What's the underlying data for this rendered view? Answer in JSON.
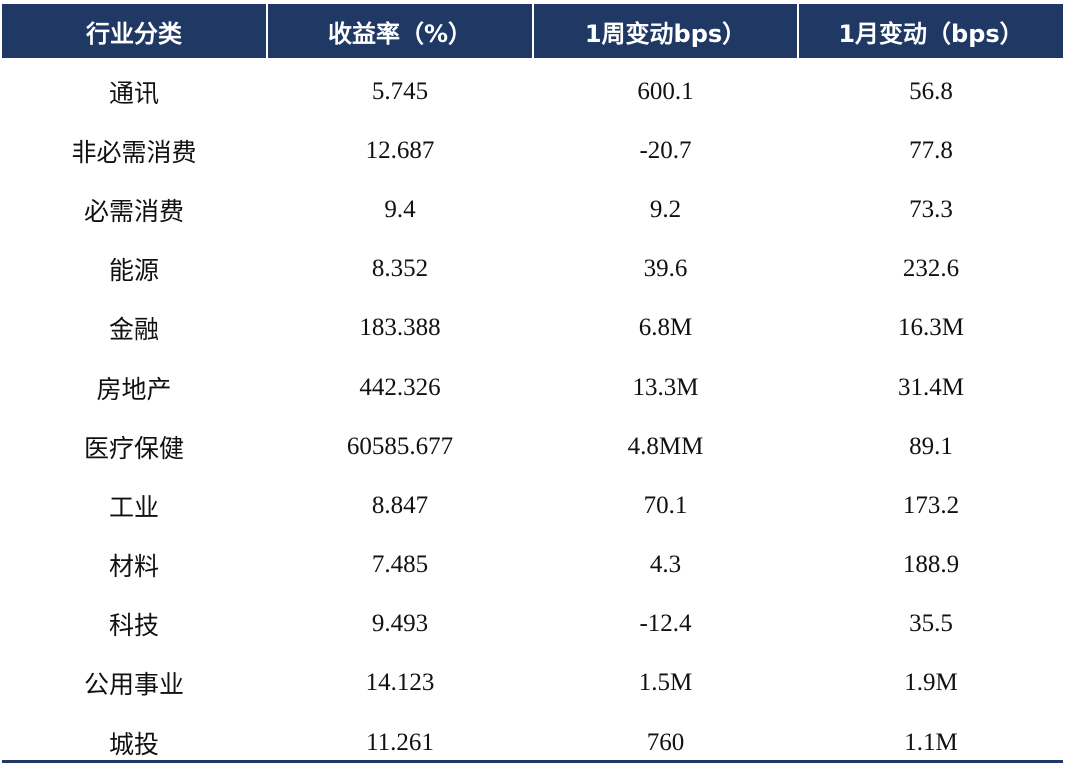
{
  "table": {
    "headers": [
      "行业分类",
      "收益率（%）",
      "1周变动bps）",
      "1月变动（bps）"
    ],
    "rows": [
      [
        "通讯",
        "5.745",
        "600.1",
        "56.8"
      ],
      [
        "非必需消费",
        "12.687",
        "-20.7",
        "77.8"
      ],
      [
        "必需消费",
        "9.4",
        "9.2",
        "73.3"
      ],
      [
        "能源",
        "8.352",
        "39.6",
        "232.6"
      ],
      [
        "金融",
        "183.388",
        "6.8M",
        "16.3M"
      ],
      [
        "房地产",
        "442.326",
        "13.3M",
        "31.4M"
      ],
      [
        "医疗保健",
        "60585.677",
        "4.8MM",
        "89.1"
      ],
      [
        "工业",
        "8.847",
        "70.1",
        "173.2"
      ],
      [
        "材料",
        "7.485",
        "4.3",
        "188.9"
      ],
      [
        "科技",
        "9.493",
        "-12.4",
        "35.5"
      ],
      [
        "公用事业",
        "14.123",
        "1.5M",
        "1.9M"
      ],
      [
        "城投",
        "11.261",
        "760",
        "1.1M"
      ]
    ]
  },
  "colors": {
    "header_bg": "#1f3864",
    "header_text": "#ffffff",
    "body_text": "#111111"
  }
}
